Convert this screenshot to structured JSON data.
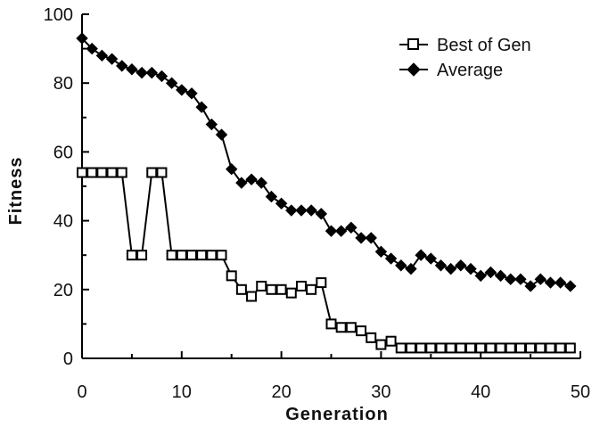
{
  "chart_data": {
    "type": "line",
    "xlabel": "Generation",
    "ylabel": "Fitness",
    "xlim": [
      0,
      50
    ],
    "ylim": [
      0,
      100
    ],
    "xticks": [
      0,
      10,
      20,
      30,
      40,
      50
    ],
    "yticks": [
      0,
      20,
      40,
      60,
      80,
      100
    ],
    "grid": false,
    "legend_position": "top-right",
    "x": [
      0,
      1,
      2,
      3,
      4,
      5,
      6,
      7,
      8,
      9,
      10,
      11,
      12,
      13,
      14,
      15,
      16,
      17,
      18,
      19,
      20,
      21,
      22,
      23,
      24,
      25,
      26,
      27,
      28,
      29,
      30,
      31,
      32,
      33,
      34,
      35,
      36,
      37,
      38,
      39,
      40,
      41,
      42,
      43,
      44,
      45,
      46,
      47,
      48,
      49
    ],
    "series": [
      {
        "name": "Best of Gen",
        "marker": "open-square",
        "values": [
          54,
          54,
          54,
          54,
          54,
          30,
          30,
          54,
          54,
          30,
          30,
          30,
          30,
          30,
          30,
          24,
          20,
          18,
          21,
          20,
          20,
          19,
          21,
          20,
          22,
          10,
          9,
          9,
          8,
          6,
          4,
          5,
          3,
          3,
          3,
          3,
          3,
          3,
          3,
          3,
          3,
          3,
          3,
          3,
          3,
          3,
          3,
          3,
          3,
          3
        ]
      },
      {
        "name": "Average",
        "marker": "filled-diamond",
        "values": [
          93,
          90,
          88,
          87,
          85,
          84,
          83,
          83,
          82,
          80,
          78,
          77,
          73,
          68,
          65,
          55,
          51,
          52,
          51,
          47,
          45,
          43,
          43,
          43,
          42,
          37,
          37,
          38,
          35,
          35,
          31,
          29,
          27,
          26,
          30,
          29,
          27,
          26,
          27,
          26,
          24,
          25,
          24,
          23,
          23,
          21,
          23,
          22,
          22,
          21
        ]
      }
    ]
  }
}
